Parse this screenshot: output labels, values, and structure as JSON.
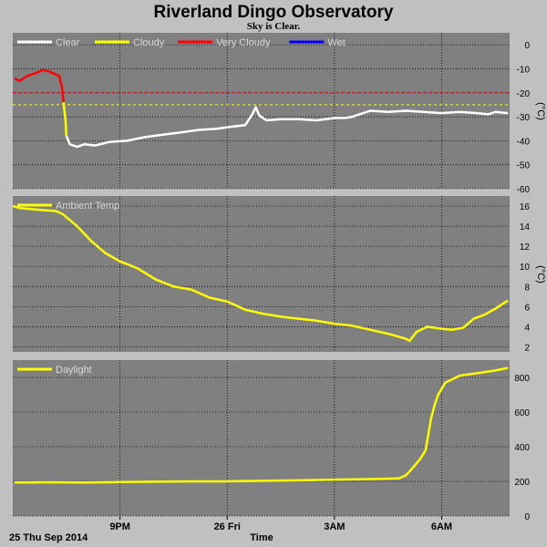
{
  "header": {
    "title": "Riverland Dingo Observatory",
    "subtitle": "Sky is Clear."
  },
  "footer": {
    "date_label": "25 Thu Sep 2014",
    "time_label": "Time"
  },
  "colors": {
    "page_bg": "#c0c0c0",
    "plot_bg": "#808080",
    "clear": "#ffffff",
    "cloudy": "#ffff00",
    "very_cloudy": "#ff0000",
    "wet": "#0000ff"
  },
  "chart_data": [
    {
      "type": "line",
      "panel": "sky",
      "ylabel": "(°C)",
      "ylim": [
        -60,
        5
      ],
      "yticks": [
        "0",
        "-10",
        "-20",
        "-30",
        "-40",
        "-50",
        "-60"
      ],
      "xlim": [
        18.0,
        31.9
      ],
      "xticks": [
        {
          "x": 21,
          "label": "9PM"
        },
        {
          "x": 24,
          "label": "26 Fri"
        },
        {
          "x": 27,
          "label": "3AM"
        },
        {
          "x": 30,
          "label": "6AM"
        }
      ],
      "legend": [
        "Clear",
        "Cloudy",
        "Very Cloudy",
        "Wet"
      ],
      "thresholds": [
        {
          "y": -20,
          "color": "#ff0000"
        },
        {
          "y": -25,
          "color": "#ffff00"
        }
      ],
      "series": [
        {
          "name": "Very Cloudy",
          "color": "#ff0000",
          "x": [
            18.05,
            18.2,
            18.4,
            18.6,
            18.85,
            19.0,
            19.15,
            19.3,
            19.38,
            19.42
          ],
          "y": [
            -14,
            -15,
            -13,
            -12,
            -10.5,
            -11,
            -12,
            -13,
            -18,
            -24
          ]
        },
        {
          "name": "Cloudy",
          "color": "#ffff00",
          "x": [
            19.42,
            19.48,
            19.5
          ],
          "y": [
            -24,
            -32,
            -38
          ]
        },
        {
          "name": "Clear",
          "color": "#ffffff",
          "x": [
            19.5,
            19.6,
            19.8,
            20.0,
            20.3,
            20.7,
            21.2,
            21.7,
            22.2,
            22.7,
            23.2,
            23.7,
            24.2,
            24.5,
            24.7,
            24.8,
            24.9,
            25.1,
            25.5,
            26.0,
            26.5,
            27.0,
            27.3,
            27.5,
            27.7,
            28.0,
            28.5,
            29.0,
            29.5,
            30.0,
            30.5,
            31.0,
            31.3,
            31.5,
            31.85
          ],
          "y": [
            -38,
            -41.5,
            -42.5,
            -41.5,
            -42,
            -40.5,
            -40,
            -38.5,
            -37.5,
            -36.5,
            -35.5,
            -35,
            -34,
            -33.5,
            -29,
            -26,
            -29.5,
            -31.5,
            -31,
            -31,
            -31.5,
            -30.5,
            -30.5,
            -30,
            -29,
            -27.5,
            -28,
            -27.5,
            -28,
            -28.5,
            -28,
            -28.5,
            -29,
            -28,
            -28.5
          ]
        }
      ]
    },
    {
      "type": "line",
      "panel": "ambient",
      "ylabel": "(°C)",
      "ylim": [
        1.5,
        17
      ],
      "yticks": [
        "16",
        "14",
        "12",
        "10",
        "8",
        "6",
        "4",
        "2"
      ],
      "xlim": [
        18.0,
        31.9
      ],
      "legend": [
        "Ambient Temp"
      ],
      "series": [
        {
          "name": "Ambient Temp",
          "color": "#ffff00",
          "x": [
            18.0,
            18.2,
            18.8,
            19.2,
            19.4,
            19.8,
            20.2,
            20.6,
            21.0,
            21.5,
            22.0,
            22.5,
            23.0,
            23.5,
            24.0,
            24.5,
            25.0,
            25.5,
            26.0,
            26.5,
            27.0,
            27.5,
            28.0,
            28.5,
            29.0,
            29.1,
            29.3,
            29.6,
            30.0,
            30.3,
            30.6,
            30.9,
            31.2,
            31.5,
            31.85
          ],
          "y": [
            16,
            15.8,
            15.6,
            15.5,
            15.2,
            14.0,
            12.5,
            11.3,
            10.5,
            9.8,
            8.7,
            8.0,
            7.7,
            6.9,
            6.5,
            5.7,
            5.3,
            5.0,
            4.8,
            4.6,
            4.3,
            4.1,
            3.7,
            3.3,
            2.8,
            2.6,
            3.5,
            4.0,
            3.8,
            3.7,
            3.9,
            4.8,
            5.2,
            5.8,
            6.6
          ]
        }
      ]
    },
    {
      "type": "line",
      "panel": "daylight",
      "ylabel": "",
      "ylim": [
        0,
        900
      ],
      "yticks": [
        "800",
        "600",
        "400",
        "200",
        "0"
      ],
      "xlim": [
        18.0,
        31.9
      ],
      "legend": [
        "Daylight"
      ],
      "series": [
        {
          "name": "Daylight",
          "color": "#ffff00",
          "x": [
            18.05,
            19.0,
            20.0,
            21.0,
            22.0,
            23.0,
            24.0,
            25.0,
            26.0,
            27.0,
            28.0,
            28.8,
            29.0,
            29.2,
            29.4,
            29.55,
            29.7,
            29.8,
            29.9,
            30.1,
            30.5,
            31.0,
            31.5,
            31.85
          ],
          "y": [
            193,
            195,
            193,
            196,
            198,
            200,
            200,
            203,
            206,
            210,
            213,
            217,
            235,
            280,
            330,
            380,
            560,
            640,
            700,
            770,
            810,
            825,
            840,
            855
          ]
        }
      ]
    }
  ]
}
